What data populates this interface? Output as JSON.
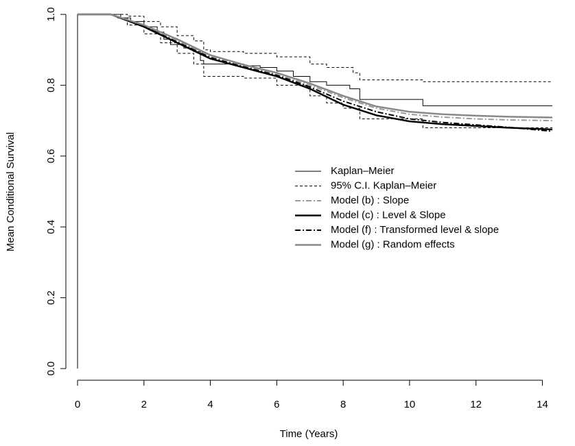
{
  "chart_data": {
    "type": "line",
    "xlabel": "Time (Years)",
    "ylabel": "Mean Conditional Survival",
    "xlim": [
      0,
      14.3
    ],
    "ylim": [
      0,
      1
    ],
    "xticks": [
      0,
      2,
      4,
      6,
      8,
      10,
      12,
      14
    ],
    "yticks": [
      {
        "value": 0,
        "label": "0.0"
      },
      {
        "value": 0.2,
        "label": "0.2"
      },
      {
        "value": 0.4,
        "label": "0.4"
      },
      {
        "value": 0.6,
        "label": "0.6"
      },
      {
        "value": 0.8,
        "label": "0.8"
      },
      {
        "value": 1,
        "label": "1.0"
      }
    ],
    "legend": "right",
    "series": [
      {
        "name": "Kaplan–Meier",
        "color": "#000000",
        "dash": "none",
        "width": 1,
        "step": true,
        "x": [
          0,
          0,
          1.3,
          1.6,
          2,
          2.4,
          2.6,
          2.8,
          3.2,
          3.5,
          3.7,
          3.8,
          4.5,
          5,
          5.5,
          6,
          6.5,
          7,
          7.5,
          8.2,
          8.5,
          10.4,
          14.3
        ],
        "values": [
          0,
          1,
          0.99,
          0.98,
          0.965,
          0.95,
          0.93,
          0.915,
          0.905,
          0.895,
          0.87,
          0.86,
          0.86,
          0.855,
          0.85,
          0.84,
          0.825,
          0.81,
          0.8,
          0.79,
          0.76,
          0.742,
          0.742
        ]
      },
      {
        "name": "95% C.I. Kaplan–Meier",
        "color": "#000000",
        "dash": "4,3",
        "width": 1,
        "step": true,
        "x": [
          1.3,
          1.5,
          2,
          2.5,
          3,
          3.5,
          3.8,
          4,
          5,
          6,
          7,
          7.5,
          8.3,
          8.5,
          10.4,
          14.3
        ],
        "values": [
          1,
          0.995,
          0.98,
          0.965,
          0.94,
          0.925,
          0.9,
          0.895,
          0.89,
          0.88,
          0.86,
          0.85,
          0.835,
          0.815,
          0.81,
          0.81
        ]
      },
      {
        "name": null,
        "color": "#000000",
        "dash": "4,3",
        "width": 1,
        "step": true,
        "x": [
          1.2,
          1.5,
          2,
          2.5,
          3,
          3.5,
          3.8,
          5,
          6,
          7,
          7.5,
          8,
          8.5,
          10.4,
          14.3
        ],
        "values": [
          0.99,
          0.97,
          0.945,
          0.92,
          0.89,
          0.86,
          0.825,
          0.82,
          0.8,
          0.77,
          0.75,
          0.735,
          0.705,
          0.68,
          0.68
        ]
      },
      {
        "name": "Model (b) : Slope",
        "color": "#999999",
        "dash": "8,3,2,3",
        "width": 2,
        "step": false,
        "x": [
          0,
          1,
          2,
          3,
          4,
          5,
          6,
          7,
          8,
          9,
          10,
          11,
          12,
          13,
          14.3
        ],
        "values": [
          1,
          1,
          0.968,
          0.926,
          0.882,
          0.855,
          0.83,
          0.8,
          0.765,
          0.735,
          0.718,
          0.71,
          0.705,
          0.702,
          0.7
        ]
      },
      {
        "name": "Model (c) : Level & Slope",
        "color": "#000000",
        "dash": "none",
        "width": 2.5,
        "step": false,
        "x": [
          0,
          1,
          2,
          3,
          4,
          5,
          6,
          7,
          8,
          9,
          10,
          11,
          12,
          13,
          14.3
        ],
        "values": [
          1,
          1,
          0.965,
          0.92,
          0.875,
          0.85,
          0.825,
          0.79,
          0.745,
          0.715,
          0.698,
          0.69,
          0.685,
          0.68,
          0.675
        ]
      },
      {
        "name": "Model (f) : Transformed level & slope",
        "color": "#000000",
        "dash": "8,3,2,3",
        "width": 2,
        "step": false,
        "x": [
          0,
          1,
          2,
          3,
          4,
          5,
          6,
          7,
          8,
          9,
          10,
          11,
          12,
          13,
          14.3
        ],
        "values": [
          1,
          1,
          0.966,
          0.922,
          0.878,
          0.852,
          0.828,
          0.795,
          0.755,
          0.725,
          0.705,
          0.695,
          0.688,
          0.681,
          0.67
        ]
      },
      {
        "name": "Model (g) : Random effects",
        "color": "#888888",
        "dash": "none",
        "width": 2.5,
        "step": false,
        "x": [
          0,
          1,
          2,
          3,
          4,
          5,
          6,
          7,
          8,
          9,
          10,
          11,
          12,
          13,
          14.3
        ],
        "values": [
          1,
          1,
          0.97,
          0.93,
          0.885,
          0.858,
          0.835,
          0.805,
          0.77,
          0.74,
          0.725,
          0.718,
          0.714,
          0.711,
          0.709
        ]
      }
    ]
  }
}
